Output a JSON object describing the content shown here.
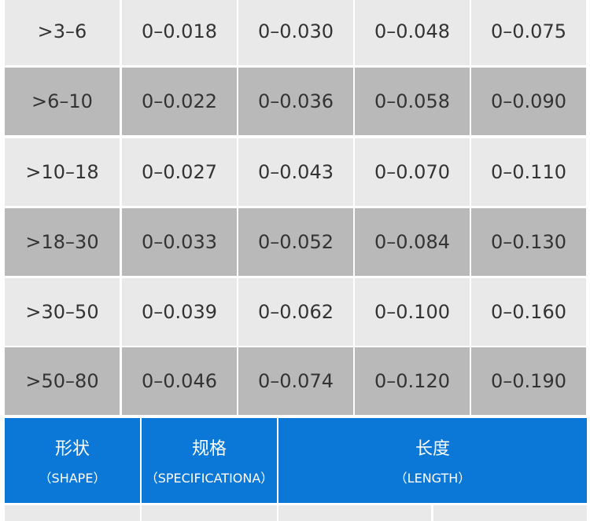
{
  "table": {
    "rows": [
      [
        ">3–6",
        "0–0.018",
        "0–0.030",
        "0–0.048",
        "0–0.075"
      ],
      [
        ">6–10",
        "0–0.022",
        "0–0.036",
        "0–0.058",
        "0–0.090"
      ],
      [
        ">10–18",
        "0–0.027",
        "0–0.043",
        "0–0.070",
        "0–0.110"
      ],
      [
        ">18–30",
        "0–0.033",
        "0–0.052",
        "0–0.084",
        "0–0.130"
      ],
      [
        ">30–50",
        "0–0.039",
        "0–0.062",
        "0–0.100",
        "0–0.160"
      ],
      [
        ">50–80",
        "0–0.046",
        "0–0.074",
        "0–0.120",
        "0–0.190"
      ]
    ]
  },
  "header": {
    "cells": [
      {
        "title": "形状",
        "subtitle": "（SHAPE）"
      },
      {
        "title": "规格",
        "subtitle": "（SPECIFICATIONA）"
      },
      {
        "title": "长度",
        "subtitle": "（LENGTH）"
      }
    ]
  }
}
